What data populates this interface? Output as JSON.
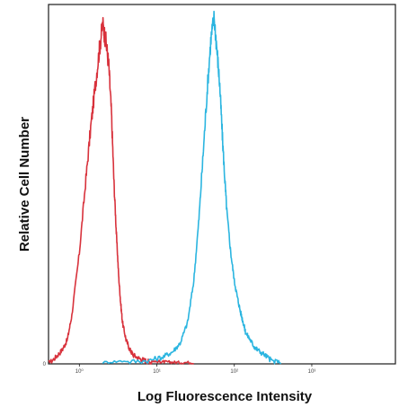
{
  "chart_data": {
    "type": "line",
    "xlabel": "Log Fluorescence Intensity",
    "ylabel": "Relative Cell Number",
    "x_scale": "log",
    "xlim": [
      0.4,
      12000
    ],
    "ylim": [
      0,
      100
    ],
    "grid": false,
    "legend": "none",
    "x_tick_labels": [
      "10⁰",
      "10¹",
      "10²",
      "10³"
    ],
    "x_ticks": [
      1,
      10,
      100,
      1000
    ],
    "y_tick_labels": [
      "0"
    ],
    "series": [
      {
        "color": "#d8323c",
        "x": [
          0.4,
          0.5,
          0.6,
          0.7,
          0.8,
          1.0,
          1.2,
          1.4,
          1.6,
          1.8,
          2.0,
          2.2,
          2.4,
          2.6,
          2.8,
          3.0,
          3.2,
          3.4,
          3.6,
          4.0,
          4.5,
          5,
          6,
          7,
          8,
          10,
          12,
          15,
          20,
          30
        ],
        "y": [
          0,
          2,
          4,
          7,
          14,
          32,
          52,
          68,
          80,
          90,
          98,
          93,
          86,
          72,
          52,
          38,
          26,
          18,
          12,
          7,
          4,
          2.5,
          1.5,
          1,
          0.6,
          0.3,
          0.2,
          0.1,
          0,
          0
        ]
      },
      {
        "color": "#2bb5e0",
        "x": [
          2,
          4,
          8,
          12,
          16,
          20,
          25,
          30,
          35,
          40,
          45,
          50,
          55,
          60,
          65,
          70,
          75,
          80,
          90,
          100,
          110,
          120,
          130,
          140,
          160,
          180,
          200,
          250,
          300,
          400
        ],
        "y": [
          0,
          0.5,
          1,
          2,
          3.5,
          6,
          12,
          24,
          42,
          62,
          80,
          94,
          100,
          90,
          80,
          66,
          54,
          44,
          32,
          24,
          19,
          15,
          12,
          9,
          7,
          5,
          4,
          2.5,
          1,
          0
        ]
      }
    ]
  }
}
